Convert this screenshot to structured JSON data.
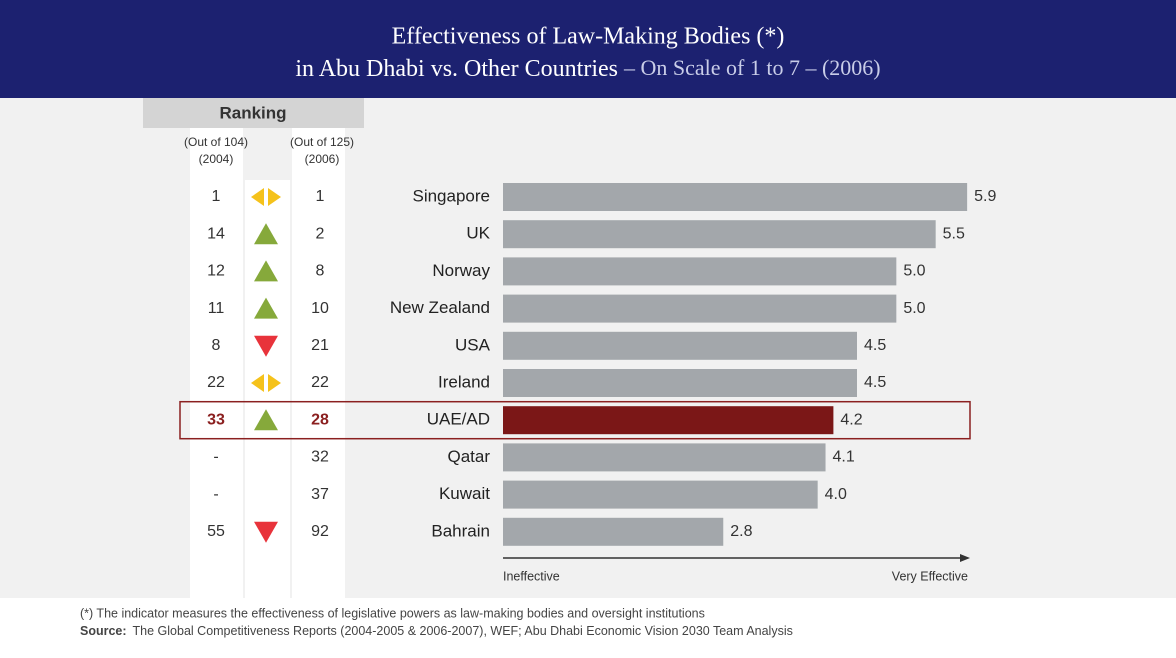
{
  "chart_data": {
    "type": "bar",
    "orientation": "horizontal",
    "title": [
      "Effectiveness of Law-Making Bodies (*)",
      "in Abu Dhabi vs. Other Countries"
    ],
    "subtitle": "– On Scale of 1 to 7 – (2006)",
    "ranking_label": "Ranking",
    "col_2004_label": [
      "(Out of 104)",
      "(2004)"
    ],
    "col_2006_label": [
      "(Out of 125)",
      "(2006)"
    ],
    "categories": [
      "Singapore",
      "UK",
      "Norway",
      "New Zealand",
      "USA",
      "Ireland",
      "UAE/AD",
      "Qatar",
      "Kuwait",
      "Bahrain"
    ],
    "values": [
      5.9,
      5.5,
      5.0,
      5.0,
      4.5,
      4.5,
      4.2,
      4.1,
      4.0,
      2.8
    ],
    "value_labels": [
      "5.9",
      "5.5",
      "5.0",
      "5.0",
      "4.5",
      "4.5",
      "4.2",
      "4.1",
      "4.0",
      "2.8"
    ],
    "bar_colors": [
      "#a3a7ab",
      "#a3a7ab",
      "#a3a7ab",
      "#a3a7ab",
      "#a3a7ab",
      "#a3a7ab",
      "#7b1717",
      "#a3a7ab",
      "#a3a7ab",
      "#a3a7ab"
    ],
    "highlight": [
      false,
      false,
      false,
      false,
      false,
      false,
      true,
      false,
      false,
      false
    ],
    "highlight_color": "#8b2020",
    "rank_2004": [
      1,
      14,
      12,
      11,
      8,
      22,
      33,
      "-",
      "-",
      55
    ],
    "rank_2006": [
      1,
      2,
      8,
      10,
      21,
      22,
      28,
      32,
      37,
      92
    ],
    "trend": [
      "same",
      "up",
      "up",
      "up",
      "down",
      "same",
      "up",
      null,
      null,
      "down"
    ],
    "trend_colors": {
      "up": "#86a93b",
      "down": "#e8333b",
      "same": "#f5c21b"
    },
    "xlim": [
      0,
      6
    ],
    "axis_low_label": "Ineffective",
    "axis_high_label": "Very Effective",
    "footnote": "(*)  The indicator measures the effectiveness of legislative powers as law-making bodies and oversight institutions",
    "source_label": "Source:",
    "source": "The Global Competitiveness Reports (2004-2005 & 2006-2007), WEF; Abu Dhabi Economic Vision 2030 Team Analysis"
  }
}
